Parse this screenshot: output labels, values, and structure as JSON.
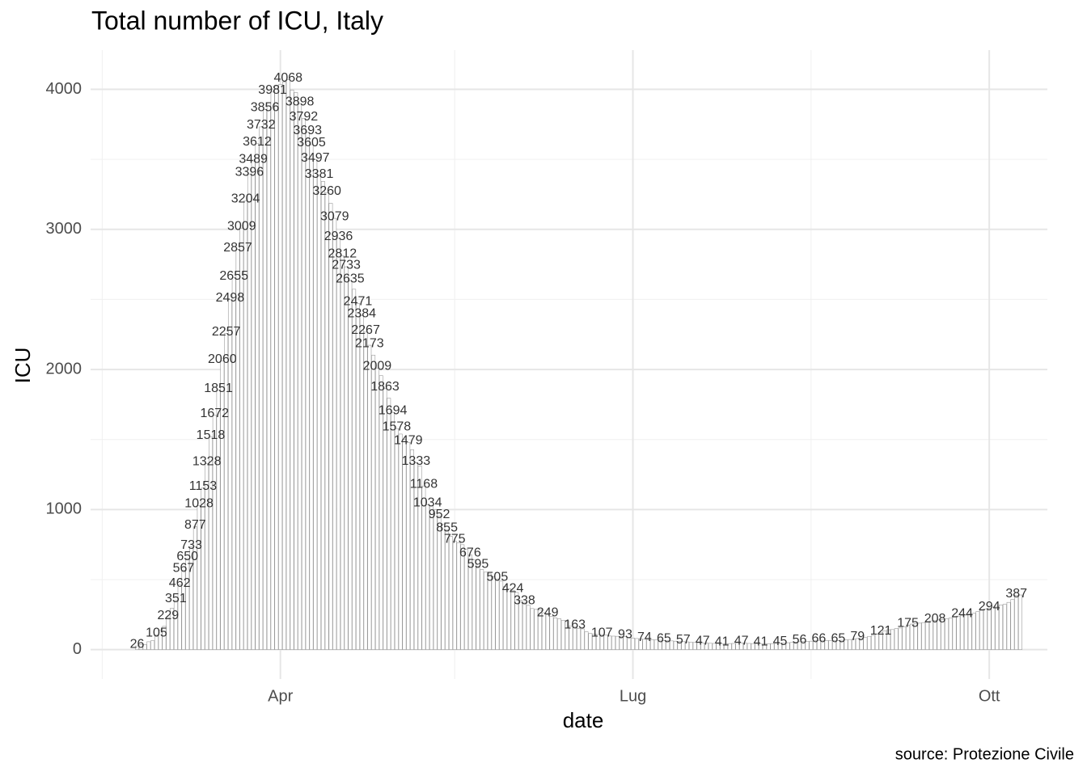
{
  "chart_data": {
    "type": "bar",
    "title": "Total number of ICU, Italy",
    "xlabel": "date",
    "ylabel": "ICU",
    "caption": "source: Protezione Civile",
    "color": "#ffffff",
    "edgecolor": "#9a9a9a",
    "grid": true,
    "ylim": [
      -210,
      4280
    ],
    "yticks": [
      0,
      1000,
      2000,
      3000,
      4000
    ],
    "yminorticks": [
      500,
      1500,
      2500,
      3500
    ],
    "xlim": [
      "02-12",
      "10-16"
    ],
    "xticks": [
      {
        "value": "04-01",
        "label": "Apr"
      },
      {
        "value": "07-01",
        "label": "Lug"
      },
      {
        "value": "10-01",
        "label": "Ott"
      }
    ],
    "xminorticks": [
      "02-15",
      "05-16",
      "08-16"
    ],
    "x": [
      "02-24",
      "02-25",
      "02-26",
      "02-27",
      "02-28",
      "02-29",
      "03-01",
      "03-02",
      "03-03",
      "03-04",
      "03-05",
      "03-06",
      "03-07",
      "03-08",
      "03-09",
      "03-10",
      "03-11",
      "03-12",
      "03-13",
      "03-14",
      "03-15",
      "03-16",
      "03-17",
      "03-18",
      "03-19",
      "03-20",
      "03-21",
      "03-22",
      "03-23",
      "03-24",
      "03-25",
      "03-26",
      "03-27",
      "03-28",
      "03-29",
      "03-30",
      "03-31",
      "04-01",
      "04-02",
      "04-03",
      "04-04",
      "04-05",
      "04-06",
      "04-07",
      "04-08",
      "04-09",
      "04-10",
      "04-11",
      "04-12",
      "04-13",
      "04-14",
      "04-15",
      "04-16",
      "04-17",
      "04-18",
      "04-19",
      "04-20",
      "04-21",
      "04-22",
      "04-23",
      "04-24",
      "04-25",
      "04-26",
      "04-27",
      "04-28",
      "04-29",
      "04-30",
      "05-01",
      "05-02",
      "05-03",
      "05-04",
      "05-05",
      "05-06",
      "05-07",
      "05-08",
      "05-09",
      "05-10",
      "05-11",
      "05-12",
      "05-13",
      "05-14",
      "05-15",
      "05-16",
      "05-17",
      "05-18",
      "05-19",
      "05-20",
      "05-21",
      "05-22",
      "05-23",
      "05-24",
      "05-25",
      "05-26",
      "05-27",
      "05-28",
      "05-29",
      "05-30",
      "05-31",
      "06-01",
      "06-02",
      "06-03",
      "06-04",
      "06-05",
      "06-06",
      "06-07",
      "06-08",
      "06-09",
      "06-10",
      "06-11",
      "06-12",
      "06-13",
      "06-14",
      "06-15",
      "06-16",
      "06-17",
      "06-18",
      "06-19",
      "06-20",
      "06-21",
      "06-22",
      "06-23",
      "06-24",
      "06-25",
      "06-26",
      "06-27",
      "06-28",
      "06-29",
      "06-30",
      "07-01",
      "07-02",
      "07-03",
      "07-04",
      "07-05",
      "07-06",
      "07-07",
      "07-08",
      "07-09",
      "07-10",
      "07-11",
      "07-12",
      "07-13",
      "07-14",
      "07-15",
      "07-16",
      "07-17",
      "07-18",
      "07-19",
      "07-20",
      "07-21",
      "07-22",
      "07-23",
      "07-24",
      "07-25",
      "07-26",
      "07-27",
      "07-28",
      "07-29",
      "07-30",
      "07-31",
      "08-01",
      "08-02",
      "08-03",
      "08-04",
      "08-05",
      "08-06",
      "08-07",
      "08-08",
      "08-09",
      "08-10",
      "08-11",
      "08-12",
      "08-13",
      "08-14",
      "08-15",
      "08-16",
      "08-17",
      "08-18",
      "08-19",
      "08-20",
      "08-21",
      "08-22",
      "08-23",
      "08-24",
      "08-25",
      "08-26",
      "08-27",
      "08-28",
      "08-29",
      "08-30",
      "08-31",
      "09-01",
      "09-02",
      "09-03",
      "09-04",
      "09-05",
      "09-06",
      "09-07",
      "09-08",
      "09-09",
      "09-10",
      "09-11",
      "09-12",
      "09-13",
      "09-14",
      "09-15",
      "09-16",
      "09-17",
      "09-18",
      "09-19",
      "09-20",
      "09-21",
      "09-22",
      "09-23",
      "09-24",
      "09-25",
      "09-26",
      "09-27",
      "09-28",
      "09-29",
      "09-30",
      "10-01",
      "10-02",
      "10-03",
      "10-04",
      "10-05",
      "10-06",
      "10-07",
      "10-08",
      "10-09"
    ],
    "values": [
      26,
      35,
      36,
      56,
      64,
      105,
      140,
      166,
      229,
      295,
      351,
      462,
      567,
      650,
      733,
      877,
      1028,
      1153,
      1328,
      1518,
      1672,
      1851,
      2060,
      2257,
      2498,
      2655,
      2857,
      3009,
      3204,
      3396,
      3489,
      3612,
      3732,
      3856,
      3906,
      3981,
      4023,
      4035,
      4053,
      4068,
      3994,
      3977,
      3898,
      3792,
      3693,
      3605,
      3497,
      3381,
      3343,
      3260,
      3186,
      3079,
      2936,
      2812,
      2733,
      2635,
      2573,
      2471,
      2384,
      2267,
      2173,
      2102,
      2009,
      1956,
      1863,
      1795,
      1694,
      1578,
      1539,
      1501,
      1479,
      1427,
      1333,
      1311,
      1168,
      1034,
      1027,
      999,
      952,
      893,
      855,
      808,
      775,
      762,
      749,
      716,
      676,
      640,
      595,
      572,
      553,
      541,
      521,
      505,
      489,
      450,
      435,
      424,
      408,
      353,
      338,
      316,
      293,
      287,
      283,
      263,
      249,
      236,
      227,
      220,
      209,
      207,
      168,
      163,
      152,
      148,
      127,
      115,
      111,
      108,
      107,
      103,
      97,
      96,
      95,
      94,
      93,
      87,
      82,
      79,
      76,
      74,
      72,
      71,
      69,
      67,
      65,
      64,
      62,
      60,
      58,
      57,
      55,
      53,
      51,
      49,
      47,
      46,
      45,
      44,
      42,
      41,
      42,
      43,
      44,
      46,
      47,
      46,
      44,
      43,
      42,
      41,
      41,
      42,
      43,
      44,
      45,
      47,
      49,
      51,
      54,
      56,
      57,
      58,
      60,
      63,
      66,
      66,
      65,
      65,
      64,
      65,
      67,
      69,
      72,
      75,
      79,
      84,
      86,
      94,
      101,
      109,
      121,
      133,
      142,
      143,
      150,
      154,
      164,
      175,
      182,
      187,
      189,
      193,
      201,
      205,
      208,
      212,
      215,
      220,
      226,
      232,
      239,
      244,
      246,
      254,
      260,
      271,
      280,
      291,
      294,
      303,
      309,
      319,
      323,
      337,
      358,
      387,
      390
    ],
    "value_labels": [
      "26",
      null,
      null,
      null,
      null,
      "105",
      null,
      null,
      "229",
      null,
      "351",
      "462",
      "567",
      "650",
      "733",
      "877",
      "1028",
      "1153",
      "1328",
      "1518",
      "1672",
      "1851",
      "2060",
      "2257",
      "2498",
      "2655",
      "2857",
      "3009",
      "3204",
      "3396",
      "3489",
      "3612",
      "3732",
      "3856",
      null,
      "3981",
      null,
      null,
      null,
      "4068",
      null,
      null,
      "3898",
      "3792",
      "3693",
      "3605",
      "3497",
      "3381",
      null,
      "3260",
      null,
      "3079",
      "2936",
      "2812",
      "2733",
      "2635",
      null,
      "2471",
      "2384",
      "2267",
      "2173",
      null,
      "2009",
      null,
      "1863",
      null,
      "1694",
      "1578",
      null,
      null,
      "1479",
      null,
      "1333",
      null,
      "1168",
      "1034",
      null,
      null,
      "952",
      null,
      "855",
      null,
      "775",
      null,
      null,
      null,
      "676",
      null,
      "595",
      null,
      null,
      null,
      null,
      "505",
      null,
      null,
      null,
      "424",
      null,
      null,
      "338",
      null,
      null,
      null,
      null,
      null,
      "249",
      null,
      null,
      null,
      null,
      null,
      null,
      "163",
      null,
      null,
      null,
      null,
      null,
      null,
      "107",
      null,
      null,
      null,
      null,
      null,
      "93",
      null,
      null,
      null,
      null,
      "74",
      null,
      null,
      null,
      null,
      "65",
      null,
      null,
      null,
      null,
      "57",
      null,
      null,
      null,
      null,
      "47",
      null,
      null,
      null,
      null,
      "41",
      null,
      null,
      null,
      null,
      "47",
      null,
      null,
      null,
      null,
      "41",
      null,
      null,
      null,
      null,
      "45",
      null,
      null,
      null,
      null,
      "56",
      null,
      null,
      null,
      null,
      "66",
      null,
      null,
      null,
      null,
      "65",
      null,
      null,
      null,
      null,
      "79",
      null,
      null,
      null,
      null,
      null,
      "121",
      null,
      null,
      null,
      null,
      null,
      null,
      "175",
      null,
      null,
      null,
      null,
      null,
      null,
      "208",
      null,
      null,
      null,
      null,
      null,
      null,
      "244",
      null,
      null,
      null,
      null,
      null,
      null,
      "294",
      null,
      null,
      null,
      null,
      null,
      null,
      "387",
      null
    ]
  }
}
